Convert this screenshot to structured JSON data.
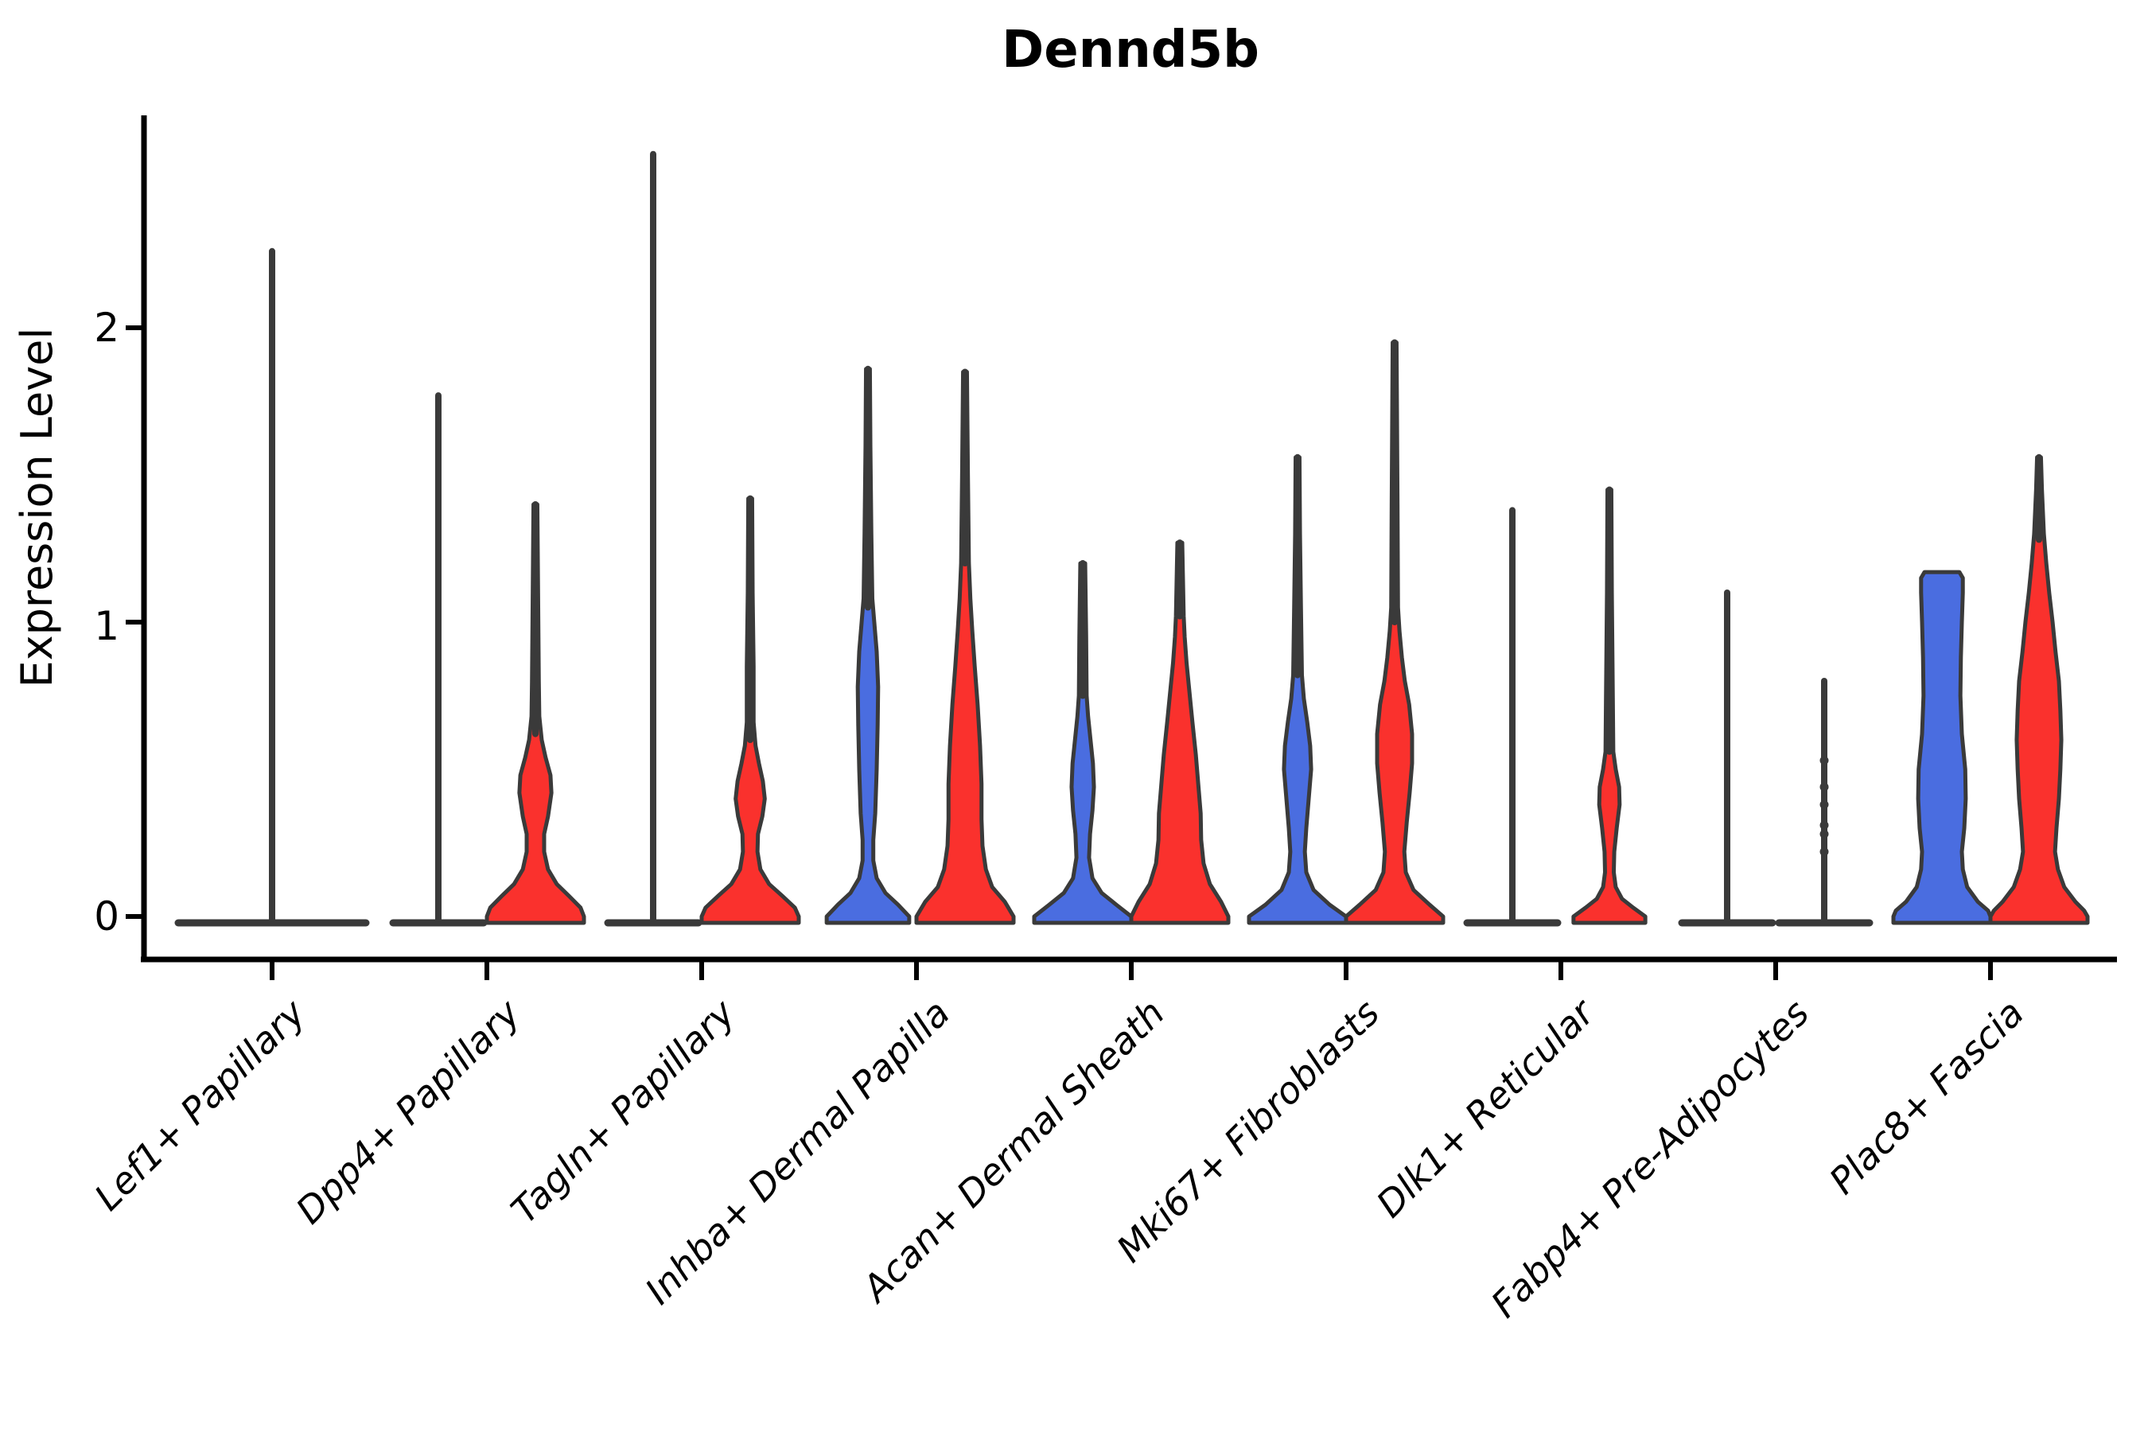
{
  "figure": {
    "title": "Dennd5b"
  },
  "y_axis": {
    "label": "Expression Level",
    "tick0": "0",
    "tick1": "1",
    "tick2": "2"
  },
  "colors": {
    "blue": "#4A6DE0",
    "red": "#FA312D",
    "outline": "#3A3A3A",
    "axis": "#000000"
  },
  "chart_data": {
    "type": "violin",
    "title": "Dennd5b",
    "ylabel": "Expression Level",
    "ylim": [
      -0.08,
      2.78
    ],
    "yticks": [
      0,
      1,
      2
    ],
    "grid": false,
    "legend": "none",
    "categories": [
      "Lef1+ Papillary",
      "Dpp4+ Papillary",
      "Tagln+ Papillary",
      "Inhba+ Dermal Papilla",
      "Acan+ Dermal Sheath",
      "Mki67+ Fibroblasts",
      "Dlk1+ Reticular",
      "Fabp4+ Pre-Adipocytes",
      "Plac8+ Fascia"
    ],
    "splits": [
      {
        "name": "blue",
        "color": "#4A6DE0"
      },
      {
        "name": "red",
        "color": "#FA312D"
      }
    ],
    "violins": [
      {
        "category_index": 0,
        "split": "blue",
        "side": "center",
        "style": "flat",
        "width_mult": 2,
        "max": 2.26
      },
      {
        "category_index": 1,
        "split": "blue",
        "side": "left",
        "style": "flat",
        "width_mult": 1,
        "max": 1.77
      },
      {
        "category_index": 1,
        "split": "red",
        "side": "right",
        "style": "density",
        "max": 1.4,
        "spike_from": 0.62,
        "profile": [
          [
            0,
            1
          ],
          [
            0.03,
            0.93
          ],
          [
            0.07,
            0.69
          ],
          [
            0.11,
            0.44
          ],
          [
            0.16,
            0.26
          ],
          [
            0.22,
            0.18
          ],
          [
            0.28,
            0.18
          ],
          [
            0.34,
            0.26
          ],
          [
            0.42,
            0.33
          ],
          [
            0.48,
            0.31
          ],
          [
            0.54,
            0.21
          ],
          [
            0.6,
            0.13
          ],
          [
            0.68,
            0.08
          ],
          [
            0.8,
            0.07
          ],
          [
            1.0,
            0.06
          ],
          [
            1.2,
            0.05
          ],
          [
            1.4,
            0.04
          ]
        ]
      },
      {
        "category_index": 2,
        "split": "blue",
        "side": "left",
        "style": "flat",
        "width_mult": 1,
        "max": 2.59
      },
      {
        "category_index": 2,
        "split": "red",
        "side": "right",
        "style": "density",
        "max": 1.42,
        "spike_from": 0.6,
        "profile": [
          [
            0,
            1
          ],
          [
            0.03,
            0.92
          ],
          [
            0.07,
            0.66
          ],
          [
            0.11,
            0.39
          ],
          [
            0.16,
            0.21
          ],
          [
            0.22,
            0.15
          ],
          [
            0.28,
            0.16
          ],
          [
            0.34,
            0.25
          ],
          [
            0.4,
            0.3
          ],
          [
            0.46,
            0.26
          ],
          [
            0.52,
            0.18
          ],
          [
            0.58,
            0.11
          ],
          [
            0.66,
            0.07
          ],
          [
            0.85,
            0.07
          ],
          [
            1.1,
            0.05
          ],
          [
            1.42,
            0.04
          ]
        ]
      },
      {
        "category_index": 3,
        "split": "blue",
        "side": "left",
        "style": "density",
        "max": 1.86,
        "spike_from": 1.05,
        "profile": [
          [
            0,
            0.85
          ],
          [
            0.04,
            0.62
          ],
          [
            0.08,
            0.36
          ],
          [
            0.13,
            0.18
          ],
          [
            0.19,
            0.11
          ],
          [
            0.26,
            0.11
          ],
          [
            0.35,
            0.15
          ],
          [
            0.5,
            0.18
          ],
          [
            0.65,
            0.2
          ],
          [
            0.78,
            0.21
          ],
          [
            0.9,
            0.18
          ],
          [
            1.0,
            0.13
          ],
          [
            1.08,
            0.09
          ],
          [
            1.3,
            0.07
          ],
          [
            1.6,
            0.05
          ],
          [
            1.86,
            0.04
          ]
        ]
      },
      {
        "category_index": 3,
        "split": "red",
        "side": "right",
        "style": "density",
        "max": 1.85,
        "spike_from": 1.2,
        "profile": [
          [
            0,
            1
          ],
          [
            0.05,
            0.82
          ],
          [
            0.1,
            0.56
          ],
          [
            0.16,
            0.43
          ],
          [
            0.24,
            0.36
          ],
          [
            0.33,
            0.34
          ],
          [
            0.45,
            0.34
          ],
          [
            0.58,
            0.31
          ],
          [
            0.72,
            0.26
          ],
          [
            0.85,
            0.2
          ],
          [
            0.97,
            0.15
          ],
          [
            1.08,
            0.11
          ],
          [
            1.2,
            0.08
          ],
          [
            1.5,
            0.06
          ],
          [
            1.85,
            0.04
          ]
        ]
      },
      {
        "category_index": 4,
        "split": "blue",
        "side": "left",
        "style": "density",
        "max": 1.2,
        "spike_from": 0.75,
        "profile": [
          [
            0,
            1
          ],
          [
            0.04,
            0.69
          ],
          [
            0.08,
            0.39
          ],
          [
            0.13,
            0.2
          ],
          [
            0.2,
            0.13
          ],
          [
            0.28,
            0.15
          ],
          [
            0.36,
            0.2
          ],
          [
            0.44,
            0.23
          ],
          [
            0.52,
            0.21
          ],
          [
            0.6,
            0.16
          ],
          [
            0.68,
            0.11
          ],
          [
            0.75,
            0.08
          ],
          [
            0.95,
            0.07
          ],
          [
            1.2,
            0.05
          ]
        ]
      },
      {
        "category_index": 4,
        "split": "red",
        "side": "right",
        "style": "density",
        "max": 1.27,
        "spike_from": 1.02,
        "profile": [
          [
            0,
            1
          ],
          [
            0.05,
            0.85
          ],
          [
            0.11,
            0.62
          ],
          [
            0.18,
            0.49
          ],
          [
            0.26,
            0.44
          ],
          [
            0.35,
            0.43
          ],
          [
            0.45,
            0.38
          ],
          [
            0.55,
            0.33
          ],
          [
            0.66,
            0.26
          ],
          [
            0.76,
            0.2
          ],
          [
            0.86,
            0.14
          ],
          [
            0.95,
            0.1
          ],
          [
            1.02,
            0.08
          ],
          [
            1.27,
            0.05
          ]
        ]
      },
      {
        "category_index": 5,
        "split": "blue",
        "side": "left",
        "style": "density",
        "max": 1.56,
        "spike_from": 0.82,
        "profile": [
          [
            0,
            1
          ],
          [
            0.04,
            0.66
          ],
          [
            0.09,
            0.33
          ],
          [
            0.15,
            0.18
          ],
          [
            0.22,
            0.15
          ],
          [
            0.3,
            0.18
          ],
          [
            0.4,
            0.23
          ],
          [
            0.5,
            0.28
          ],
          [
            0.58,
            0.26
          ],
          [
            0.66,
            0.2
          ],
          [
            0.74,
            0.13
          ],
          [
            0.82,
            0.09
          ],
          [
            1.05,
            0.07
          ],
          [
            1.3,
            0.05
          ],
          [
            1.56,
            0.04
          ]
        ]
      },
      {
        "category_index": 5,
        "split": "red",
        "side": "right",
        "style": "density",
        "max": 1.95,
        "spike_from": 1.0,
        "profile": [
          [
            0,
            1
          ],
          [
            0.04,
            0.72
          ],
          [
            0.09,
            0.39
          ],
          [
            0.15,
            0.23
          ],
          [
            0.22,
            0.2
          ],
          [
            0.32,
            0.25
          ],
          [
            0.42,
            0.31
          ],
          [
            0.52,
            0.36
          ],
          [
            0.62,
            0.36
          ],
          [
            0.72,
            0.3
          ],
          [
            0.8,
            0.21
          ],
          [
            0.88,
            0.15
          ],
          [
            0.97,
            0.1
          ],
          [
            1.05,
            0.07
          ],
          [
            1.4,
            0.06
          ],
          [
            1.95,
            0.04
          ]
        ]
      },
      {
        "category_index": 6,
        "split": "blue",
        "side": "left",
        "style": "flat",
        "width_mult": 1,
        "max": 1.38
      },
      {
        "category_index": 6,
        "split": "red",
        "side": "right",
        "style": "density",
        "max": 1.45,
        "spike_from": 0.56,
        "profile": [
          [
            0,
            0.74
          ],
          [
            0.03,
            0.49
          ],
          [
            0.06,
            0.26
          ],
          [
            0.1,
            0.13
          ],
          [
            0.15,
            0.09
          ],
          [
            0.22,
            0.1
          ],
          [
            0.3,
            0.15
          ],
          [
            0.38,
            0.21
          ],
          [
            0.44,
            0.2
          ],
          [
            0.5,
            0.13
          ],
          [
            0.56,
            0.08
          ],
          [
            0.75,
            0.07
          ],
          [
            1.1,
            0.05
          ],
          [
            1.45,
            0.04
          ]
        ]
      },
      {
        "category_index": 7,
        "split": "blue",
        "side": "left",
        "style": "flat",
        "width_mult": 1,
        "max": 1.1
      },
      {
        "category_index": 7,
        "split": "red",
        "side": "right",
        "style": "points",
        "max": 0.8,
        "points": [
          0.53,
          0.44,
          0.38,
          0.31,
          0.28,
          0.22
        ]
      },
      {
        "category_index": 8,
        "split": "blue",
        "side": "left",
        "style": "density",
        "max": 1.17,
        "spike_from": null,
        "profile": [
          [
            0,
            1
          ],
          [
            0.02,
            0.95
          ],
          [
            0.05,
            0.74
          ],
          [
            0.1,
            0.52
          ],
          [
            0.16,
            0.43
          ],
          [
            0.22,
            0.41
          ],
          [
            0.3,
            0.46
          ],
          [
            0.4,
            0.49
          ],
          [
            0.5,
            0.48
          ],
          [
            0.62,
            0.41
          ],
          [
            0.75,
            0.38
          ],
          [
            0.88,
            0.39
          ],
          [
            1.0,
            0.41
          ],
          [
            1.1,
            0.43
          ],
          [
            1.15,
            0.43
          ],
          [
            1.17,
            0.36
          ]
        ]
      },
      {
        "category_index": 8,
        "split": "red",
        "side": "right",
        "style": "density",
        "max": 1.56,
        "spike_from": 1.28,
        "profile": [
          [
            0,
            1
          ],
          [
            0.02,
            0.93
          ],
          [
            0.05,
            0.75
          ],
          [
            0.1,
            0.52
          ],
          [
            0.16,
            0.39
          ],
          [
            0.22,
            0.33
          ],
          [
            0.3,
            0.36
          ],
          [
            0.4,
            0.41
          ],
          [
            0.5,
            0.44
          ],
          [
            0.6,
            0.46
          ],
          [
            0.7,
            0.44
          ],
          [
            0.8,
            0.41
          ],
          [
            0.9,
            0.34
          ],
          [
            1.0,
            0.28
          ],
          [
            1.1,
            0.21
          ],
          [
            1.2,
            0.15
          ],
          [
            1.3,
            0.1
          ],
          [
            1.45,
            0.06
          ],
          [
            1.56,
            0.04
          ]
        ]
      }
    ]
  }
}
